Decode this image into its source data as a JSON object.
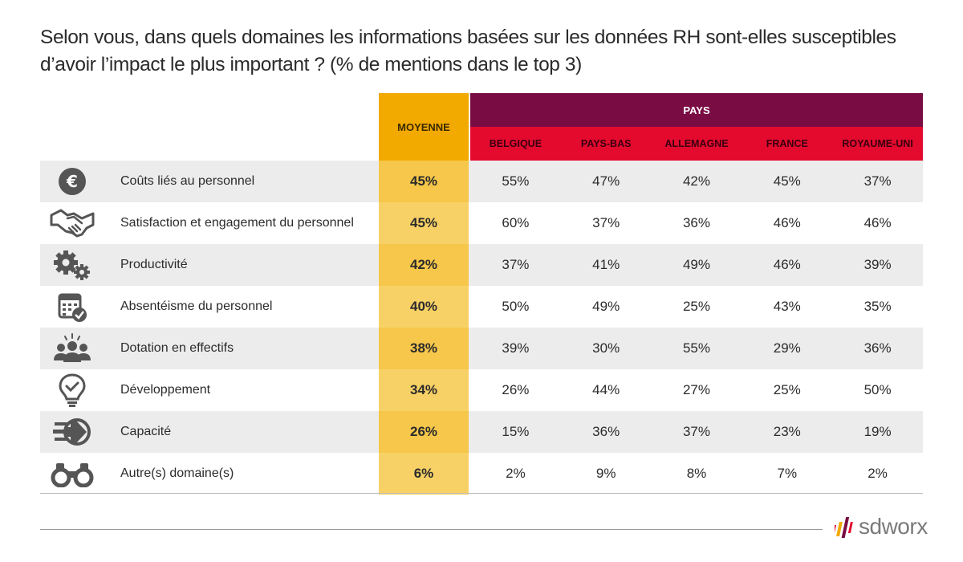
{
  "title": {
    "line1": "Selon vous, dans quels domaines les informations basées sur les données RH sont-elles susceptibles",
    "line2": "d’avoir l’impact le plus important ? (% de mentions dans le top 3)"
  },
  "colors": {
    "average": "#F2A900",
    "pays": "#7A0C44",
    "countries": "#E30A2E"
  },
  "chart_data": {
    "type": "table",
    "title": "Selon vous, dans quels domaines les informations basées sur les données RH sont-elles susceptibles d’avoir l’impact le plus important ? (% de mentions dans le top 3)",
    "average_header": "MOYENNE",
    "group_header": "PAYS",
    "countries": [
      "BELGIQUE",
      "PAYS-BAS",
      "ALLEMAGNE",
      "FRANCE",
      "ROYAUME-UNI"
    ],
    "rows": [
      {
        "icon": "euro-icon",
        "label": "Coûts liés au personnel",
        "avg": "45%",
        "values": [
          "55%",
          "47%",
          "42%",
          "45%",
          "37%"
        ]
      },
      {
        "icon": "handshake-icon",
        "label": "Satisfaction et engagement du personnel",
        "avg": "45%",
        "values": [
          "60%",
          "37%",
          "36%",
          "46%",
          "46%"
        ]
      },
      {
        "icon": "gears-icon",
        "label": "Productivité",
        "avg": "42%",
        "values": [
          "37%",
          "41%",
          "49%",
          "46%",
          "39%"
        ]
      },
      {
        "icon": "calendar-check-icon",
        "label": "Absentéisme du personnel",
        "avg": "40%",
        "values": [
          "50%",
          "49%",
          "25%",
          "43%",
          "35%"
        ]
      },
      {
        "icon": "people-group-icon",
        "label": "Dotation en effectifs",
        "avg": "38%",
        "values": [
          "39%",
          "30%",
          "55%",
          "29%",
          "36%"
        ]
      },
      {
        "icon": "lightbulb-icon",
        "label": "Développement",
        "avg": "34%",
        "values": [
          "26%",
          "44%",
          "27%",
          "25%",
          "50%"
        ]
      },
      {
        "icon": "arrow-speed-icon",
        "label": "Capacité",
        "avg": "26%",
        "values": [
          "15%",
          "36%",
          "37%",
          "23%",
          "19%"
        ]
      },
      {
        "icon": "binoculars-icon",
        "label": "Autre(s) domaine(s)",
        "avg": "6%",
        "values": [
          "2%",
          "9%",
          "8%",
          "7%",
          "2%"
        ]
      }
    ]
  },
  "logo": {
    "text": "sdworx"
  }
}
